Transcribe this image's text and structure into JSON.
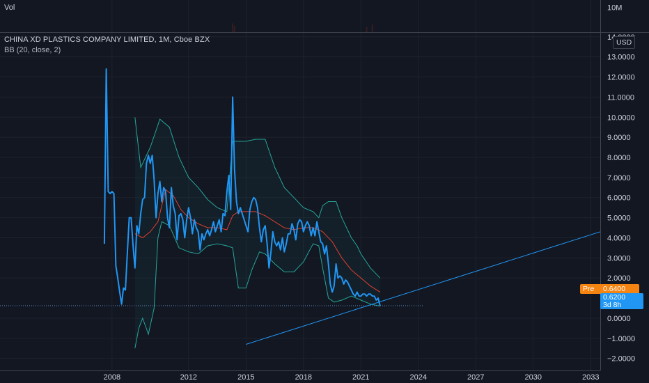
{
  "window": {
    "vol_label": "Vol",
    "symbol_title": "CHINA XD PLASTICS COMPANY LIMITED, 1M, Cboe BZX",
    "indicator": "BB (20, close, 2)",
    "currency_button": "USD",
    "pre_market_tag": "Pre",
    "pre_market_price": "0.6400",
    "last_price": "0.6200",
    "countdown": "3d 8h"
  },
  "colors": {
    "background": "#131722",
    "price_line": "#2196f3",
    "bb_band": "#26a69a",
    "bb_basis": "#e04030",
    "pre_market": "#f68410",
    "trend_line": "#2196f3"
  },
  "chart_data": {
    "type": "line",
    "volume_axis": {
      "labels": [
        "10M"
      ],
      "values": [
        10000000
      ]
    },
    "price_axis": {
      "labels": [
        "14.0000",
        "13.0000",
        "12.0000",
        "11.0000",
        "10.0000",
        "9.0000",
        "8.0000",
        "7.0000",
        "6.0000",
        "5.0000",
        "4.0000",
        "3.0000",
        "2.0000",
        "0.0000",
        "−1.0000",
        "−2.0000"
      ],
      "values": [
        14,
        13,
        12,
        11,
        10,
        9,
        8,
        7,
        6,
        5,
        4,
        3,
        2,
        0,
        -1,
        -2
      ],
      "range": [
        -2.6,
        14.2
      ]
    },
    "time_axis": {
      "labels": [
        "2008",
        "2012",
        "2015",
        "2018",
        "2021",
        "2024",
        "2027",
        "2030",
        "2033"
      ],
      "years": [
        2008,
        2012,
        2015,
        2018,
        2021,
        2024,
        2027,
        2030,
        2033
      ],
      "range": [
        2002.15,
        2033.5
      ]
    },
    "series": [
      {
        "type": "line",
        "points": [
          [
            2007.6,
            3.7
          ],
          [
            2007.7,
            12.4
          ],
          [
            2007.8,
            6.3
          ],
          [
            2007.9,
            6.2
          ],
          [
            2008.0,
            6.3
          ],
          [
            2008.1,
            6.2
          ],
          [
            2008.2,
            2.6
          ],
          [
            2008.3,
            2.0
          ],
          [
            2008.4,
            1.3
          ],
          [
            2008.5,
            0.7
          ],
          [
            2008.6,
            1.5
          ],
          [
            2008.7,
            1.4
          ],
          [
            2008.8,
            3.2
          ],
          [
            2008.9,
            5.0
          ],
          [
            2009.0,
            5.0
          ],
          [
            2009.1,
            3.6
          ],
          [
            2009.2,
            2.5
          ],
          [
            2009.3,
            4.6
          ],
          [
            2009.4,
            4.2
          ],
          [
            2009.5,
            5.2
          ],
          [
            2009.6,
            5.9
          ],
          [
            2009.7,
            6.0
          ],
          [
            2009.8,
            7.7
          ],
          [
            2009.9,
            8.1
          ],
          [
            2010.0,
            7.7
          ],
          [
            2010.1,
            8.1
          ],
          [
            2010.2,
            6.9
          ],
          [
            2010.3,
            5.0
          ],
          [
            2010.4,
            6.2
          ],
          [
            2010.5,
            6.8
          ],
          [
            2010.6,
            5.8
          ],
          [
            2010.7,
            6.5
          ],
          [
            2010.8,
            6.3
          ],
          [
            2010.9,
            5.0
          ],
          [
            2011.0,
            4.5
          ],
          [
            2011.1,
            6.5
          ],
          [
            2011.2,
            5.6
          ],
          [
            2011.3,
            5.2
          ],
          [
            2011.4,
            3.9
          ],
          [
            2011.5,
            5.1
          ],
          [
            2011.6,
            5.2
          ],
          [
            2011.7,
            4.9
          ],
          [
            2011.8,
            4.0
          ],
          [
            2011.9,
            4.9
          ],
          [
            2012.0,
            5.5
          ],
          [
            2012.1,
            5.0
          ],
          [
            2012.2,
            4.2
          ],
          [
            2012.3,
            4.9
          ],
          [
            2012.4,
            4.5
          ],
          [
            2012.5,
            4.3
          ],
          [
            2012.6,
            3.4
          ],
          [
            2012.7,
            4.2
          ],
          [
            2012.8,
            3.9
          ],
          [
            2012.9,
            4.2
          ],
          [
            2013.0,
            4.4
          ],
          [
            2013.1,
            4.1
          ],
          [
            2013.2,
            4.4
          ],
          [
            2013.3,
            4.8
          ],
          [
            2013.4,
            4.3
          ],
          [
            2013.5,
            4.6
          ],
          [
            2013.6,
            4.9
          ],
          [
            2013.7,
            4.3
          ],
          [
            2013.8,
            5.2
          ],
          [
            2013.9,
            5.1
          ],
          [
            2014.0,
            6.3
          ],
          [
            2014.1,
            7.1
          ],
          [
            2014.2,
            5.4
          ],
          [
            2014.3,
            11.0
          ],
          [
            2014.4,
            7.4
          ],
          [
            2014.5,
            5.8
          ],
          [
            2014.6,
            5.2
          ],
          [
            2014.7,
            5.5
          ],
          [
            2014.8,
            5.2
          ],
          [
            2014.9,
            4.9
          ],
          [
            2015.0,
            4.6
          ],
          [
            2015.1,
            4.3
          ],
          [
            2015.2,
            5.4
          ],
          [
            2015.3,
            5.8
          ],
          [
            2015.4,
            6.0
          ],
          [
            2015.5,
            5.9
          ],
          [
            2015.6,
            5.5
          ],
          [
            2015.7,
            4.5
          ],
          [
            2015.8,
            3.8
          ],
          [
            2015.9,
            4.4
          ],
          [
            2016.0,
            4.6
          ],
          [
            2016.1,
            3.7
          ],
          [
            2016.2,
            2.5
          ],
          [
            2016.3,
            3.3
          ],
          [
            2016.4,
            4.3
          ],
          [
            2016.5,
            3.8
          ],
          [
            2016.6,
            3.6
          ],
          [
            2016.7,
            3.8
          ],
          [
            2016.8,
            3.4
          ],
          [
            2016.9,
            4.0
          ],
          [
            2017.0,
            3.3
          ],
          [
            2017.1,
            3.7
          ],
          [
            2017.2,
            4.2
          ],
          [
            2017.3,
            4.2
          ],
          [
            2017.4,
            4.7
          ],
          [
            2017.5,
            4.4
          ],
          [
            2017.6,
            3.9
          ],
          [
            2017.7,
            4.7
          ],
          [
            2017.8,
            4.9
          ],
          [
            2017.9,
            4.8
          ],
          [
            2018.0,
            4.3
          ],
          [
            2018.1,
            4.6
          ],
          [
            2018.2,
            4.8
          ],
          [
            2018.3,
            4.6
          ],
          [
            2018.4,
            4.1
          ],
          [
            2018.5,
            4.5
          ],
          [
            2018.6,
            4.1
          ],
          [
            2018.7,
            4.8
          ],
          [
            2018.8,
            4.3
          ],
          [
            2018.9,
            3.8
          ],
          [
            2019.0,
            3.7
          ],
          [
            2019.1,
            3.2
          ],
          [
            2019.2,
            3.6
          ],
          [
            2019.3,
            2.7
          ],
          [
            2019.4,
            1.7
          ],
          [
            2019.5,
            1.3
          ],
          [
            2019.6,
            1.6
          ],
          [
            2019.7,
            2.7
          ],
          [
            2019.8,
            2.0
          ],
          [
            2019.9,
            2.1
          ],
          [
            2020.0,
            2.0
          ],
          [
            2020.1,
            1.7
          ],
          [
            2020.2,
            1.9
          ],
          [
            2020.3,
            1.8
          ],
          [
            2020.4,
            1.6
          ],
          [
            2020.5,
            1.4
          ],
          [
            2020.6,
            1.2
          ],
          [
            2020.7,
            1.1
          ],
          [
            2020.8,
            1.3
          ],
          [
            2020.9,
            1.1
          ],
          [
            2021.0,
            1.1
          ],
          [
            2021.1,
            1.2
          ],
          [
            2021.2,
            1.2
          ],
          [
            2021.3,
            1.1
          ],
          [
            2021.4,
            1.2
          ],
          [
            2021.5,
            1.2
          ],
          [
            2021.6,
            1.1
          ],
          [
            2021.7,
            1.1
          ],
          [
            2021.8,
            0.9
          ],
          [
            2021.9,
            1.0
          ],
          [
            2022.0,
            0.62
          ]
        ]
      },
      {
        "type": "line",
        "points": [
          [
            2009.2,
            10.0
          ],
          [
            2009.5,
            7.5
          ],
          [
            2010.0,
            8.5
          ],
          [
            2010.5,
            9.9
          ],
          [
            2011.0,
            9.5
          ],
          [
            2011.5,
            8.0
          ],
          [
            2012.0,
            7.0
          ],
          [
            2012.5,
            6.5
          ],
          [
            2013.0,
            5.9
          ],
          [
            2013.5,
            5.5
          ],
          [
            2014.0,
            5.3
          ],
          [
            2014.3,
            8.8
          ],
          [
            2014.6,
            8.8
          ],
          [
            2015.0,
            8.8
          ],
          [
            2015.5,
            8.9
          ],
          [
            2016.0,
            8.9
          ],
          [
            2016.5,
            7.5
          ],
          [
            2017.0,
            6.5
          ],
          [
            2017.5,
            6.0
          ],
          [
            2018.0,
            5.5
          ],
          [
            2018.5,
            5.3
          ],
          [
            2018.8,
            5.0
          ],
          [
            2019.0,
            5.6
          ],
          [
            2019.3,
            5.8
          ],
          [
            2019.7,
            5.8
          ],
          [
            2020.0,
            5.0
          ],
          [
            2020.5,
            4.0
          ],
          [
            2020.8,
            3.6
          ],
          [
            2021.0,
            3.2
          ],
          [
            2021.5,
            2.5
          ],
          [
            2022.0,
            2.0
          ]
        ]
      },
      {
        "type": "line",
        "points": [
          [
            2009.2,
            -1.5
          ],
          [
            2009.4,
            -0.5
          ],
          [
            2009.6,
            0.0
          ],
          [
            2009.9,
            -0.8
          ],
          [
            2010.2,
            0.5
          ],
          [
            2010.4,
            4.0
          ],
          [
            2010.6,
            4.8
          ],
          [
            2011.0,
            4.6
          ],
          [
            2011.5,
            3.5
          ],
          [
            2012.0,
            3.3
          ],
          [
            2012.5,
            3.2
          ],
          [
            2013.0,
            3.6
          ],
          [
            2013.5,
            3.7
          ],
          [
            2014.0,
            3.6
          ],
          [
            2014.3,
            3.5
          ],
          [
            2014.6,
            1.5
          ],
          [
            2015.0,
            1.5
          ],
          [
            2015.3,
            2.4
          ],
          [
            2015.7,
            3.3
          ],
          [
            2016.0,
            3.2
          ],
          [
            2016.5,
            2.7
          ],
          [
            2017.0,
            2.3
          ],
          [
            2017.5,
            2.3
          ],
          [
            2018.0,
            2.8
          ],
          [
            2018.5,
            3.7
          ],
          [
            2018.8,
            3.6
          ],
          [
            2019.0,
            2.5
          ],
          [
            2019.3,
            1.0
          ],
          [
            2019.6,
            0.8
          ],
          [
            2020.0,
            0.9
          ],
          [
            2020.5,
            1.1
          ],
          [
            2021.0,
            0.9
          ],
          [
            2021.5,
            0.7
          ],
          [
            2022.0,
            0.6
          ]
        ]
      },
      {
        "type": "line",
        "points": [
          [
            2009.2,
            4.2
          ],
          [
            2009.6,
            4.0
          ],
          [
            2010.0,
            4.3
          ],
          [
            2010.4,
            4.8
          ],
          [
            2010.8,
            6.4
          ],
          [
            2011.2,
            6.1
          ],
          [
            2011.6,
            5.4
          ],
          [
            2012.0,
            5.0
          ],
          [
            2012.5,
            4.7
          ],
          [
            2013.0,
            4.5
          ],
          [
            2013.5,
            4.5
          ],
          [
            2014.0,
            4.4
          ],
          [
            2014.3,
            5.1
          ],
          [
            2014.6,
            5.3
          ],
          [
            2015.0,
            5.3
          ],
          [
            2015.5,
            5.3
          ],
          [
            2016.0,
            5.1
          ],
          [
            2016.5,
            4.8
          ],
          [
            2017.0,
            4.5
          ],
          [
            2017.5,
            4.4
          ],
          [
            2018.0,
            4.5
          ],
          [
            2018.5,
            4.5
          ],
          [
            2018.8,
            4.4
          ],
          [
            2019.0,
            4.3
          ],
          [
            2019.5,
            3.8
          ],
          [
            2020.0,
            3.0
          ],
          [
            2020.5,
            2.4
          ],
          [
            2021.0,
            2.0
          ],
          [
            2021.5,
            1.6
          ],
          [
            2022.0,
            1.3
          ]
        ]
      },
      {
        "type": "line",
        "points": [
          [
            2015.0,
            -1.3
          ],
          [
            2033.5,
            4.3
          ]
        ]
      }
    ],
    "reference_lines": [
      {
        "price": 0.62,
        "x_from": 2002.15,
        "x_to": 2024.3
      }
    ],
    "volume_bars": [
      {
        "x": 2014.3,
        "v": 3500000
      },
      {
        "x": 2014.4,
        "v": 2500000
      },
      {
        "x": 2021.3,
        "v": 2000000
      },
      {
        "x": 2021.6,
        "v": 3000000
      }
    ],
    "volume_range": [
      0,
      13000000
    ],
    "grid": true
  }
}
